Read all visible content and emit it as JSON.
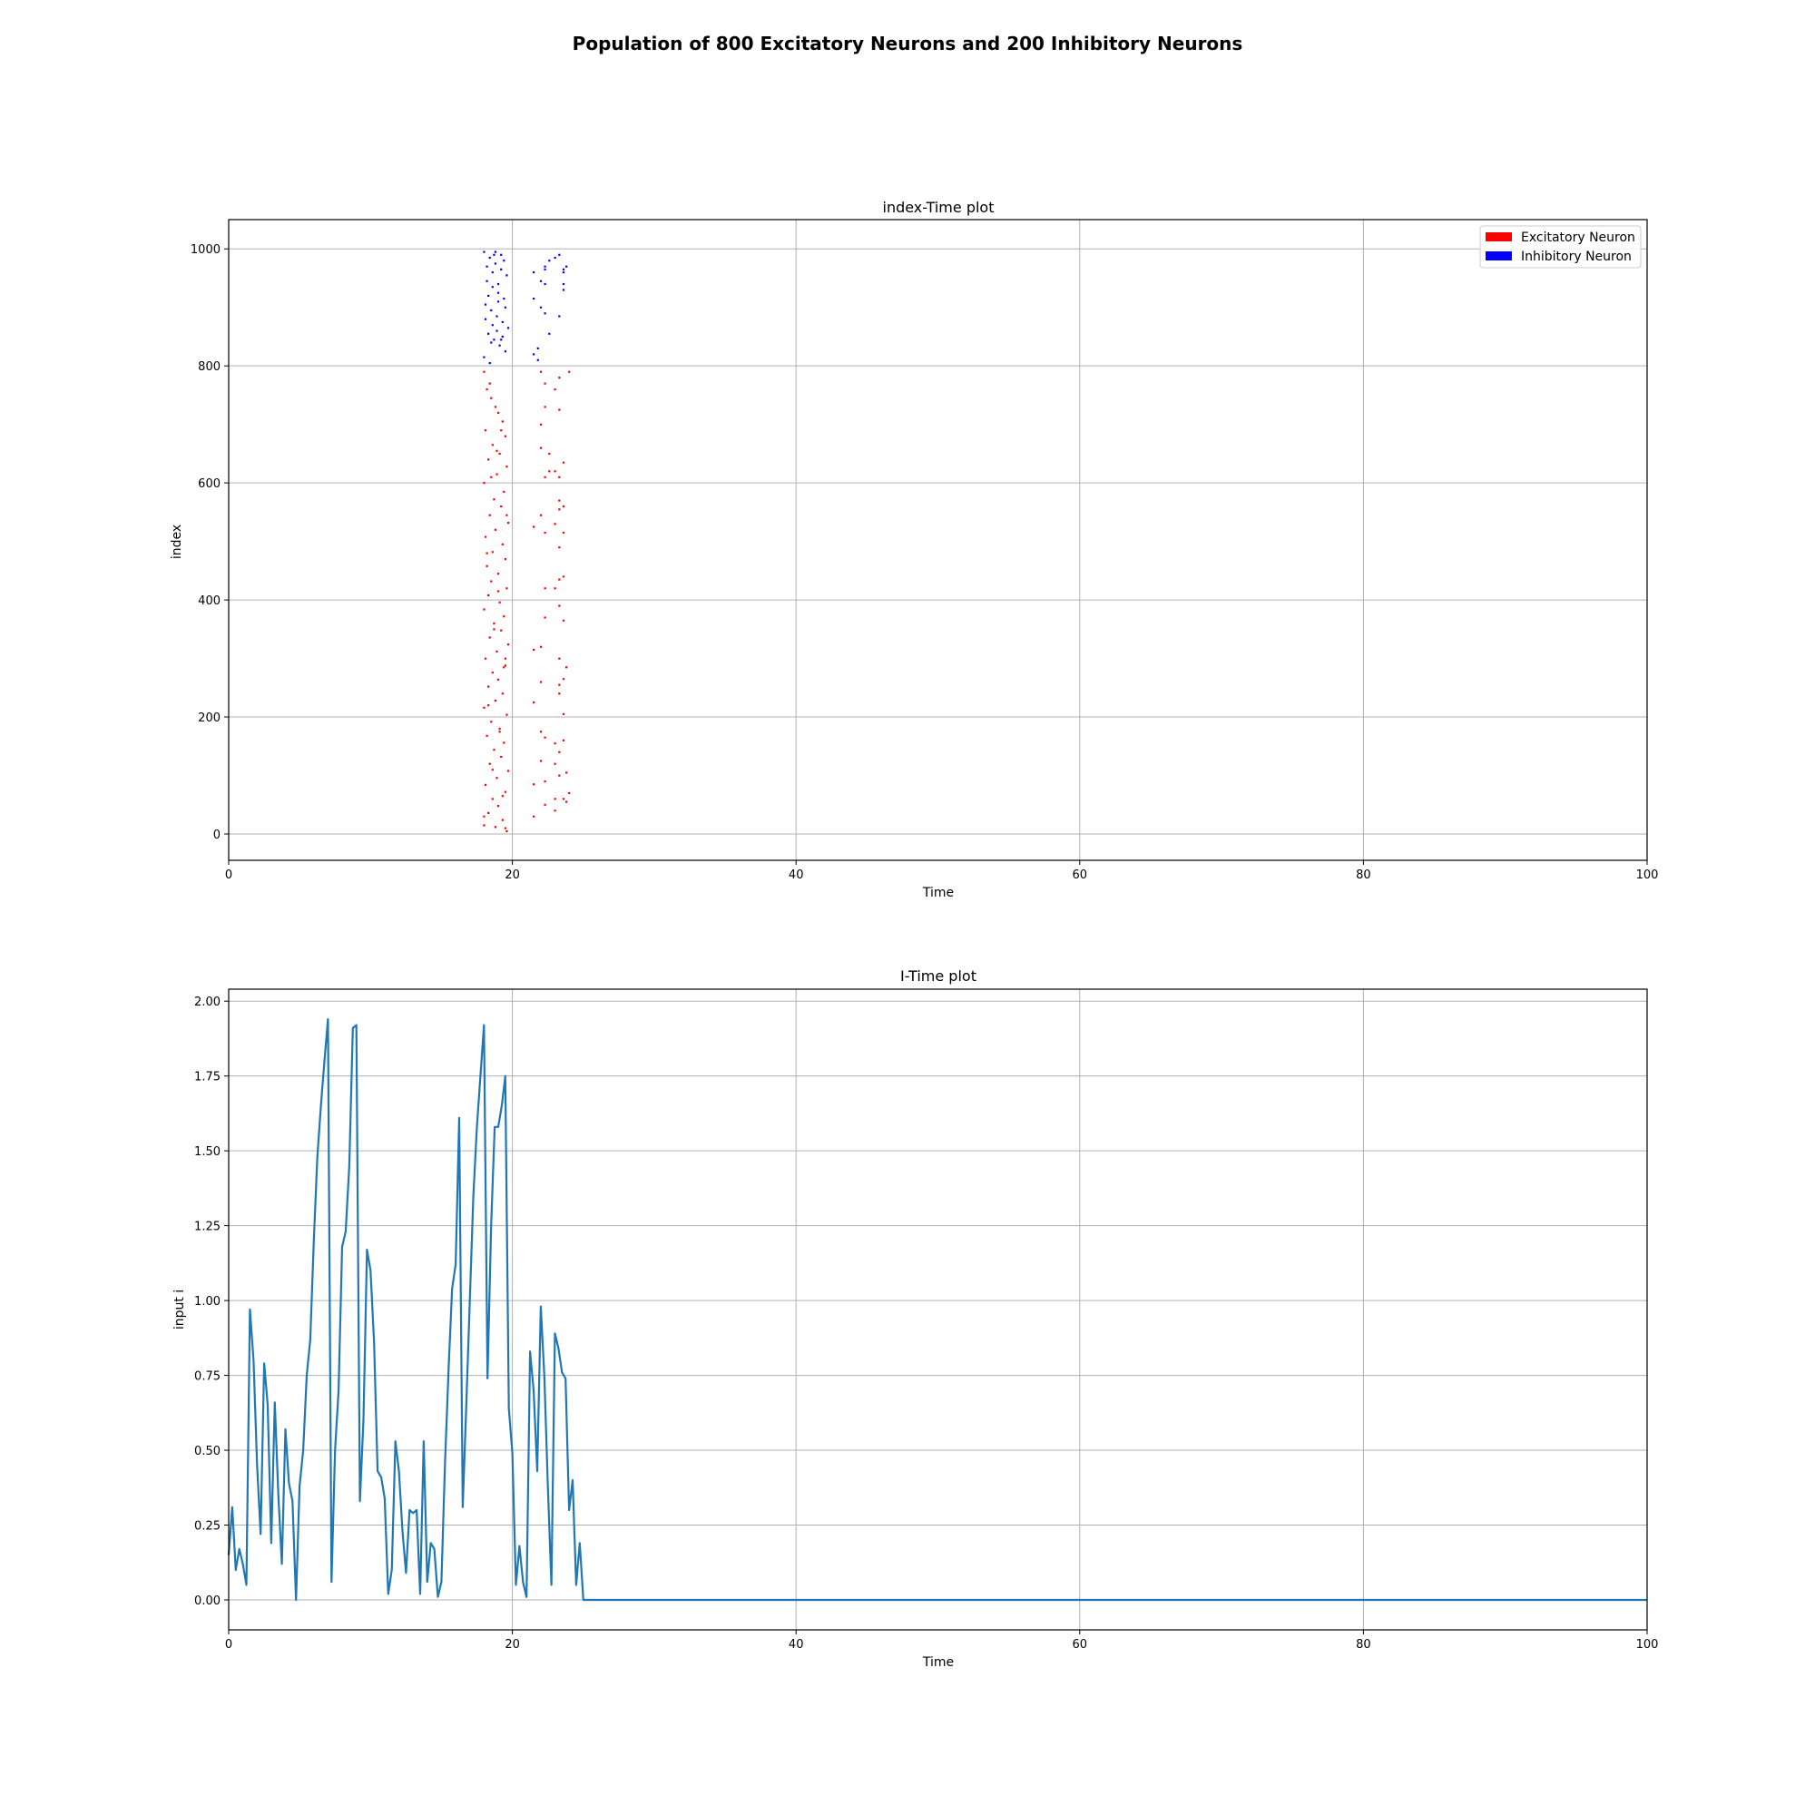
{
  "figure": {
    "suptitle": "Population of 800 Excitatory Neurons and 200 Inhibitory Neurons"
  },
  "chart_data": [
    {
      "type": "scatter",
      "title": "index-Time plot",
      "xlabel": "Time",
      "ylabel": "index",
      "xlim": [
        0,
        100
      ],
      "ylim": [
        -45,
        1050
      ],
      "xticks": [
        0,
        20,
        40,
        60,
        80,
        100
      ],
      "yticks": [
        0,
        200,
        400,
        600,
        800,
        1000
      ],
      "grid": true,
      "legend_position": "top-right",
      "series": [
        {
          "name": "Excitatory Neuron",
          "color": "#ff0000",
          "points": [
            [
              18.0,
              790
            ],
            [
              18.2,
              760
            ],
            [
              18.5,
              745
            ],
            [
              18.8,
              730
            ],
            [
              19.0,
              720
            ],
            [
              19.3,
              705
            ],
            [
              18.1,
              690
            ],
            [
              19.5,
              680
            ],
            [
              18.6,
              665
            ],
            [
              19.1,
              650
            ],
            [
              18.3,
              640
            ],
            [
              19.6,
              628
            ],
            [
              18.9,
              615
            ],
            [
              18.0,
              600
            ],
            [
              19.4,
              585
            ],
            [
              18.7,
              572
            ],
            [
              19.2,
              560
            ],
            [
              18.4,
              545
            ],
            [
              19.7,
              532
            ],
            [
              18.8,
              520
            ],
            [
              18.1,
              508
            ],
            [
              19.3,
              495
            ],
            [
              18.6,
              482
            ],
            [
              19.5,
              470
            ],
            [
              18.2,
              458
            ],
            [
              19.0,
              445
            ],
            [
              18.5,
              432
            ],
            [
              19.6,
              420
            ],
            [
              18.3,
              408
            ],
            [
              19.1,
              396
            ],
            [
              18.0,
              384
            ],
            [
              19.4,
              372
            ],
            [
              18.7,
              360
            ],
            [
              19.2,
              348
            ],
            [
              18.4,
              336
            ],
            [
              19.7,
              324
            ],
            [
              18.9,
              312
            ],
            [
              18.1,
              300
            ],
            [
              19.5,
              288
            ],
            [
              18.6,
              276
            ],
            [
              19.0,
              264
            ],
            [
              18.3,
              252
            ],
            [
              19.3,
              240
            ],
            [
              18.8,
              228
            ],
            [
              18.0,
              216
            ],
            [
              19.6,
              204
            ],
            [
              18.5,
              192
            ],
            [
              19.1,
              180
            ],
            [
              18.2,
              168
            ],
            [
              19.4,
              156
            ],
            [
              18.7,
              144
            ],
            [
              19.2,
              132
            ],
            [
              18.4,
              120
            ],
            [
              19.7,
              108
            ],
            [
              18.9,
              96
            ],
            [
              18.1,
              84
            ],
            [
              19.5,
              72
            ],
            [
              18.6,
              60
            ],
            [
              19.0,
              48
            ],
            [
              18.3,
              36
            ],
            [
              19.3,
              24
            ],
            [
              18.8,
              12
            ],
            [
              19.6,
              5
            ],
            [
              18.0,
              15
            ],
            [
              19.5,
              10
            ],
            [
              18.4,
              770
            ],
            [
              19.2,
              690
            ],
            [
              18.9,
              655
            ],
            [
              18.5,
              610
            ],
            [
              19.6,
              545
            ],
            [
              18.2,
              480
            ],
            [
              19.0,
              415
            ],
            [
              18.7,
              350
            ],
            [
              19.4,
              285
            ],
            [
              18.3,
              220
            ],
            [
              19.1,
              175
            ],
            [
              18.6,
              110
            ],
            [
              19.3,
              65
            ],
            [
              18.0,
              30
            ],
            [
              19.5,
              300
            ],
            [
              21.5,
              525
            ],
            [
              21.5,
              315
            ],
            [
              21.5,
              225
            ],
            [
              21.5,
              85
            ],
            [
              21.5,
              30
            ],
            [
              22.0,
              790
            ],
            [
              22.0,
              700
            ],
            [
              22.0,
              660
            ],
            [
              22.0,
              545
            ],
            [
              22.0,
              320
            ],
            [
              22.0,
              260
            ],
            [
              22.0,
              175
            ],
            [
              22.0,
              125
            ],
            [
              22.3,
              770
            ],
            [
              22.3,
              730
            ],
            [
              22.3,
              610
            ],
            [
              22.3,
              515
            ],
            [
              22.3,
              420
            ],
            [
              22.3,
              370
            ],
            [
              22.3,
              165
            ],
            [
              22.3,
              90
            ],
            [
              22.3,
              50
            ],
            [
              22.6,
              650
            ],
            [
              22.6,
              620
            ],
            [
              23.0,
              760
            ],
            [
              23.0,
              620
            ],
            [
              23.0,
              530
            ],
            [
              23.0,
              420
            ],
            [
              23.0,
              155
            ],
            [
              23.0,
              120
            ],
            [
              23.0,
              60
            ],
            [
              23.0,
              40
            ],
            [
              23.3,
              780
            ],
            [
              23.3,
              725
            ],
            [
              23.3,
              610
            ],
            [
              23.3,
              570
            ],
            [
              23.3,
              555
            ],
            [
              23.3,
              490
            ],
            [
              23.3,
              435
            ],
            [
              23.3,
              390
            ],
            [
              23.3,
              300
            ],
            [
              23.3,
              255
            ],
            [
              23.3,
              240
            ],
            [
              23.3,
              140
            ],
            [
              23.3,
              100
            ],
            [
              23.6,
              635
            ],
            [
              23.6,
              560
            ],
            [
              23.6,
              515
            ],
            [
              23.6,
              440
            ],
            [
              23.6,
              365
            ],
            [
              23.6,
              265
            ],
            [
              23.6,
              205
            ],
            [
              23.6,
              160
            ],
            [
              23.6,
              60
            ],
            [
              24.0,
              790
            ],
            [
              24.0,
              70
            ],
            [
              23.8,
              285
            ],
            [
              23.8,
              105
            ],
            [
              23.8,
              55
            ]
          ]
        },
        {
          "name": "Inhibitory Neuron",
          "color": "#0000ff",
          "points": [
            [
              18.0,
              995
            ],
            [
              18.4,
              985
            ],
            [
              18.8,
              975
            ],
            [
              19.2,
              965
            ],
            [
              19.6,
              955
            ],
            [
              18.2,
              945
            ],
            [
              18.6,
              935
            ],
            [
              19.0,
              925
            ],
            [
              19.4,
              915
            ],
            [
              18.1,
              905
            ],
            [
              18.5,
              895
            ],
            [
              18.9,
              885
            ],
            [
              19.3,
              875
            ],
            [
              19.7,
              865
            ],
            [
              18.3,
              855
            ],
            [
              18.7,
              845
            ],
            [
              19.1,
              835
            ],
            [
              19.5,
              825
            ],
            [
              18.0,
              815
            ],
            [
              18.4,
              805
            ],
            [
              18.8,
              995
            ],
            [
              19.2,
              990
            ],
            [
              18.6,
              960
            ],
            [
              19.0,
              940
            ],
            [
              18.3,
              920
            ],
            [
              19.5,
              900
            ],
            [
              18.1,
              880
            ],
            [
              18.9,
              860
            ],
            [
              19.3,
              850
            ],
            [
              18.5,
              840
            ],
            [
              18.7,
              990
            ],
            [
              19.4,
              980
            ],
            [
              18.2,
              970
            ],
            [
              19.0,
              910
            ],
            [
              18.6,
              870
            ],
            [
              19.2,
              845
            ],
            [
              21.5,
              960
            ],
            [
              21.5,
              915
            ],
            [
              21.5,
              820
            ],
            [
              21.8,
              830
            ],
            [
              21.8,
              810
            ],
            [
              22.0,
              945
            ],
            [
              22.0,
              900
            ],
            [
              22.3,
              970
            ],
            [
              22.3,
              965
            ],
            [
              22.3,
              940
            ],
            [
              22.3,
              890
            ],
            [
              22.6,
              980
            ],
            [
              22.6,
              855
            ],
            [
              23.0,
              985
            ],
            [
              23.3,
              990
            ],
            [
              23.3,
              885
            ],
            [
              23.6,
              965
            ],
            [
              23.6,
              960
            ],
            [
              23.6,
              940
            ],
            [
              23.6,
              930
            ],
            [
              23.8,
              970
            ]
          ]
        }
      ]
    },
    {
      "type": "line",
      "title": "I-Time plot",
      "xlabel": "Time",
      "ylabel": "input i",
      "xlim": [
        0,
        100
      ],
      "ylim": [
        -0.1,
        2.04
      ],
      "xticks": [
        0,
        20,
        40,
        60,
        80,
        100
      ],
      "yticks": [
        0.0,
        0.25,
        0.5,
        0.75,
        1.0,
        1.25,
        1.5,
        1.75,
        2.0
      ],
      "ytick_labels": [
        "0.00",
        "0.25",
        "0.50",
        "0.75",
        "1.00",
        "1.25",
        "1.50",
        "1.75",
        "2.00"
      ],
      "grid": true,
      "series": [
        {
          "color": "#1f77b4",
          "x": [
            0,
            0.25,
            0.5,
            0.75,
            1,
            1.25,
            1.5,
            1.75,
            2,
            2.25,
            2.5,
            2.75,
            3,
            3.25,
            3.5,
            3.75,
            4,
            4.25,
            4.5,
            4.75,
            5,
            5.25,
            5.5,
            5.75,
            6,
            6.25,
            6.5,
            6.75,
            7,
            7.25,
            7.5,
            7.75,
            8,
            8.25,
            8.5,
            8.75,
            9,
            9.25,
            9.5,
            9.75,
            10,
            10.25,
            10.5,
            10.75,
            11,
            11.25,
            11.5,
            11.75,
            12,
            12.25,
            12.5,
            12.75,
            13,
            13.25,
            13.5,
            13.75,
            14,
            14.25,
            14.5,
            14.75,
            15,
            15.25,
            15.5,
            15.75,
            16,
            16.25,
            16.5,
            16.75,
            17,
            17.25,
            17.5,
            17.75,
            18,
            18.25,
            18.5,
            18.75,
            19,
            19.25,
            19.5,
            19.75,
            20,
            20.25,
            20.5,
            20.75,
            21,
            21.25,
            21.5,
            21.75,
            22,
            22.25,
            22.5,
            22.75,
            23,
            23.25,
            23.5,
            23.75,
            24,
            24.25,
            24.5,
            24.75,
            25,
            25.25,
            100
          ],
          "y": [
            0.15,
            0.31,
            0.1,
            0.17,
            0.12,
            0.05,
            0.97,
            0.8,
            0.45,
            0.22,
            0.79,
            0.65,
            0.19,
            0.66,
            0.35,
            0.12,
            0.57,
            0.39,
            0.33,
            0.0,
            0.38,
            0.5,
            0.75,
            0.87,
            1.2,
            1.48,
            1.65,
            1.8,
            1.94,
            0.06,
            0.5,
            0.7,
            1.18,
            1.23,
            1.45,
            1.91,
            1.92,
            0.33,
            0.6,
            1.17,
            1.1,
            0.86,
            0.43,
            0.41,
            0.34,
            0.02,
            0.1,
            0.53,
            0.43,
            0.23,
            0.09,
            0.3,
            0.29,
            0.3,
            0.02,
            0.53,
            0.06,
            0.19,
            0.17,
            0.01,
            0.06,
            0.46,
            0.77,
            1.04,
            1.12,
            1.61,
            0.31,
            0.65,
            1.0,
            1.35,
            1.58,
            1.75,
            1.92,
            0.74,
            1.25,
            1.58,
            1.58,
            1.65,
            1.75,
            0.64,
            0.49,
            0.05,
            0.18,
            0.06,
            0.01,
            0.83,
            0.7,
            0.43,
            0.98,
            0.75,
            0.38,
            0.05,
            0.89,
            0.84,
            0.76,
            0.74,
            0.3,
            0.4,
            0.05,
            0.19,
            0.0,
            0.0,
            0.0
          ]
        }
      ]
    }
  ]
}
